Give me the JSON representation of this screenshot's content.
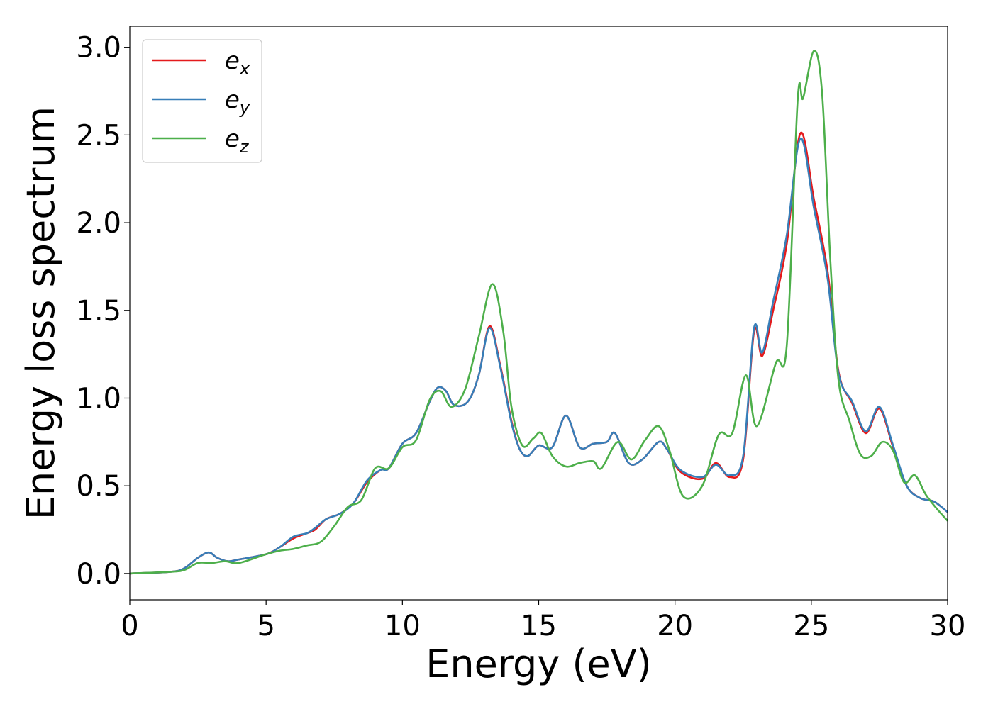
{
  "chart_data": {
    "type": "line",
    "xlabel": "Energy (eV)",
    "ylabel": "Energy loss spectrum",
    "xlim": [
      0,
      30
    ],
    "ylim": [
      -0.15,
      3.12
    ],
    "xticks": [
      "0",
      "5",
      "10",
      "15",
      "20",
      "25",
      "30"
    ],
    "yticks": [
      "0.0",
      "0.5",
      "1.0",
      "1.5",
      "2.0",
      "2.5",
      "3.0"
    ],
    "grid": false,
    "legend_position": "top-left",
    "series": [
      {
        "name": "e",
        "subscript": "x",
        "color": "#e41a1c",
        "points": [
          [
            0,
            0
          ],
          [
            1.5,
            0.01
          ],
          [
            2,
            0.03
          ],
          [
            2.5,
            0.09
          ],
          [
            2.9,
            0.12
          ],
          [
            3.2,
            0.09
          ],
          [
            3.6,
            0.07
          ],
          [
            4,
            0.08
          ],
          [
            5,
            0.11
          ],
          [
            5.5,
            0.15
          ],
          [
            6,
            0.2
          ],
          [
            6.5,
            0.23
          ],
          [
            6.8,
            0.25
          ],
          [
            7.2,
            0.31
          ],
          [
            7.7,
            0.34
          ],
          [
            8.2,
            0.4
          ],
          [
            8.7,
            0.52
          ],
          [
            9.2,
            0.59
          ],
          [
            9.5,
            0.6
          ],
          [
            10,
            0.74
          ],
          [
            10.5,
            0.8
          ],
          [
            11,
            0.98
          ],
          [
            11.3,
            1.06
          ],
          [
            11.6,
            1.04
          ],
          [
            11.9,
            0.96
          ],
          [
            12.4,
            0.98
          ],
          [
            12.8,
            1.13
          ],
          [
            13.2,
            1.41
          ],
          [
            13.6,
            1.18
          ],
          [
            14,
            0.87
          ],
          [
            14.3,
            0.71
          ],
          [
            14.6,
            0.67
          ],
          [
            15,
            0.73
          ],
          [
            15.5,
            0.72
          ],
          [
            16,
            0.9
          ],
          [
            16.5,
            0.72
          ],
          [
            17,
            0.74
          ],
          [
            17.5,
            0.75
          ],
          [
            17.8,
            0.8
          ],
          [
            18.3,
            0.63
          ],
          [
            18.8,
            0.65
          ],
          [
            19.4,
            0.75
          ],
          [
            19.7,
            0.71
          ],
          [
            20.2,
            0.58
          ],
          [
            21,
            0.54
          ],
          [
            21.5,
            0.63
          ],
          [
            22,
            0.55
          ],
          [
            22.5,
            0.65
          ],
          [
            22.9,
            1.38
          ],
          [
            23.2,
            1.24
          ],
          [
            23.6,
            1.5
          ],
          [
            24.1,
            1.88
          ],
          [
            24.6,
            2.51
          ],
          [
            25.1,
            2.13
          ],
          [
            25.6,
            1.72
          ],
          [
            26,
            1.15
          ],
          [
            26.5,
            0.97
          ],
          [
            27,
            0.8
          ],
          [
            27.5,
            0.94
          ],
          [
            28,
            0.72
          ],
          [
            28.5,
            0.5
          ],
          [
            29,
            0.43
          ],
          [
            29.5,
            0.41
          ],
          [
            30,
            0.35
          ]
        ]
      },
      {
        "name": "e",
        "subscript": "y",
        "color": "#377eb8",
        "points": [
          [
            0,
            0
          ],
          [
            1.5,
            0.01
          ],
          [
            2,
            0.03
          ],
          [
            2.5,
            0.09
          ],
          [
            2.9,
            0.12
          ],
          [
            3.2,
            0.09
          ],
          [
            3.6,
            0.07
          ],
          [
            4,
            0.08
          ],
          [
            5,
            0.11
          ],
          [
            5.5,
            0.15
          ],
          [
            6,
            0.21
          ],
          [
            6.5,
            0.23
          ],
          [
            6.8,
            0.26
          ],
          [
            7.2,
            0.31
          ],
          [
            7.7,
            0.34
          ],
          [
            8.2,
            0.4
          ],
          [
            8.7,
            0.53
          ],
          [
            9.2,
            0.59
          ],
          [
            9.5,
            0.6
          ],
          [
            10,
            0.74
          ],
          [
            10.5,
            0.8
          ],
          [
            11,
            0.98
          ],
          [
            11.3,
            1.06
          ],
          [
            11.6,
            1.04
          ],
          [
            11.9,
            0.96
          ],
          [
            12.4,
            0.98
          ],
          [
            12.8,
            1.13
          ],
          [
            13.2,
            1.4
          ],
          [
            13.6,
            1.17
          ],
          [
            14,
            0.86
          ],
          [
            14.3,
            0.71
          ],
          [
            14.6,
            0.67
          ],
          [
            15,
            0.73
          ],
          [
            15.5,
            0.72
          ],
          [
            16,
            0.9
          ],
          [
            16.5,
            0.72
          ],
          [
            17,
            0.74
          ],
          [
            17.5,
            0.75
          ],
          [
            17.8,
            0.8
          ],
          [
            18.3,
            0.63
          ],
          [
            18.8,
            0.65
          ],
          [
            19.4,
            0.75
          ],
          [
            19.7,
            0.71
          ],
          [
            20.2,
            0.59
          ],
          [
            21,
            0.55
          ],
          [
            21.5,
            0.62
          ],
          [
            22,
            0.56
          ],
          [
            22.5,
            0.67
          ],
          [
            22.9,
            1.4
          ],
          [
            23.2,
            1.26
          ],
          [
            23.6,
            1.55
          ],
          [
            24.1,
            1.93
          ],
          [
            24.6,
            2.48
          ],
          [
            25.1,
            2.08
          ],
          [
            25.6,
            1.68
          ],
          [
            26,
            1.14
          ],
          [
            26.5,
            0.98
          ],
          [
            27,
            0.81
          ],
          [
            27.5,
            0.95
          ],
          [
            28,
            0.73
          ],
          [
            28.5,
            0.5
          ],
          [
            29,
            0.43
          ],
          [
            29.5,
            0.41
          ],
          [
            30,
            0.35
          ]
        ]
      },
      {
        "name": "e",
        "subscript": "z",
        "color": "#4daf4a",
        "points": [
          [
            0,
            0
          ],
          [
            1.5,
            0.01
          ],
          [
            2,
            0.02
          ],
          [
            2.5,
            0.06
          ],
          [
            3,
            0.06
          ],
          [
            3.5,
            0.07
          ],
          [
            4,
            0.06
          ],
          [
            5,
            0.11
          ],
          [
            5.5,
            0.13
          ],
          [
            6,
            0.14
          ],
          [
            6.5,
            0.16
          ],
          [
            7,
            0.18
          ],
          [
            7.5,
            0.27
          ],
          [
            8,
            0.38
          ],
          [
            8.5,
            0.42
          ],
          [
            9,
            0.6
          ],
          [
            9.5,
            0.6
          ],
          [
            10,
            0.72
          ],
          [
            10.5,
            0.76
          ],
          [
            11,
            0.99
          ],
          [
            11.4,
            1.04
          ],
          [
            11.8,
            0.95
          ],
          [
            12.3,
            1.05
          ],
          [
            12.8,
            1.35
          ],
          [
            13.3,
            1.65
          ],
          [
            13.7,
            1.38
          ],
          [
            14,
            0.95
          ],
          [
            14.4,
            0.73
          ],
          [
            14.8,
            0.77
          ],
          [
            15.1,
            0.8
          ],
          [
            15.5,
            0.67
          ],
          [
            16,
            0.61
          ],
          [
            16.5,
            0.63
          ],
          [
            17,
            0.64
          ],
          [
            17.3,
            0.6
          ],
          [
            17.9,
            0.75
          ],
          [
            18.4,
            0.65
          ],
          [
            18.9,
            0.76
          ],
          [
            19.4,
            0.84
          ],
          [
            19.8,
            0.7
          ],
          [
            20.3,
            0.44
          ],
          [
            21,
            0.5
          ],
          [
            21.6,
            0.79
          ],
          [
            22.1,
            0.8
          ],
          [
            22.6,
            1.13
          ],
          [
            23,
            0.84
          ],
          [
            23.7,
            1.2
          ],
          [
            24.1,
            1.3
          ],
          [
            24.5,
            2.7
          ],
          [
            24.7,
            2.71
          ],
          [
            25.1,
            2.98
          ],
          [
            25.4,
            2.73
          ],
          [
            25.7,
            1.78
          ],
          [
            26,
            1.1
          ],
          [
            26.4,
            0.87
          ],
          [
            26.8,
            0.68
          ],
          [
            27.2,
            0.67
          ],
          [
            27.6,
            0.75
          ],
          [
            28,
            0.7
          ],
          [
            28.4,
            0.52
          ],
          [
            28.8,
            0.56
          ],
          [
            29.2,
            0.45
          ],
          [
            29.6,
            0.37
          ],
          [
            30,
            0.3
          ]
        ]
      }
    ]
  }
}
